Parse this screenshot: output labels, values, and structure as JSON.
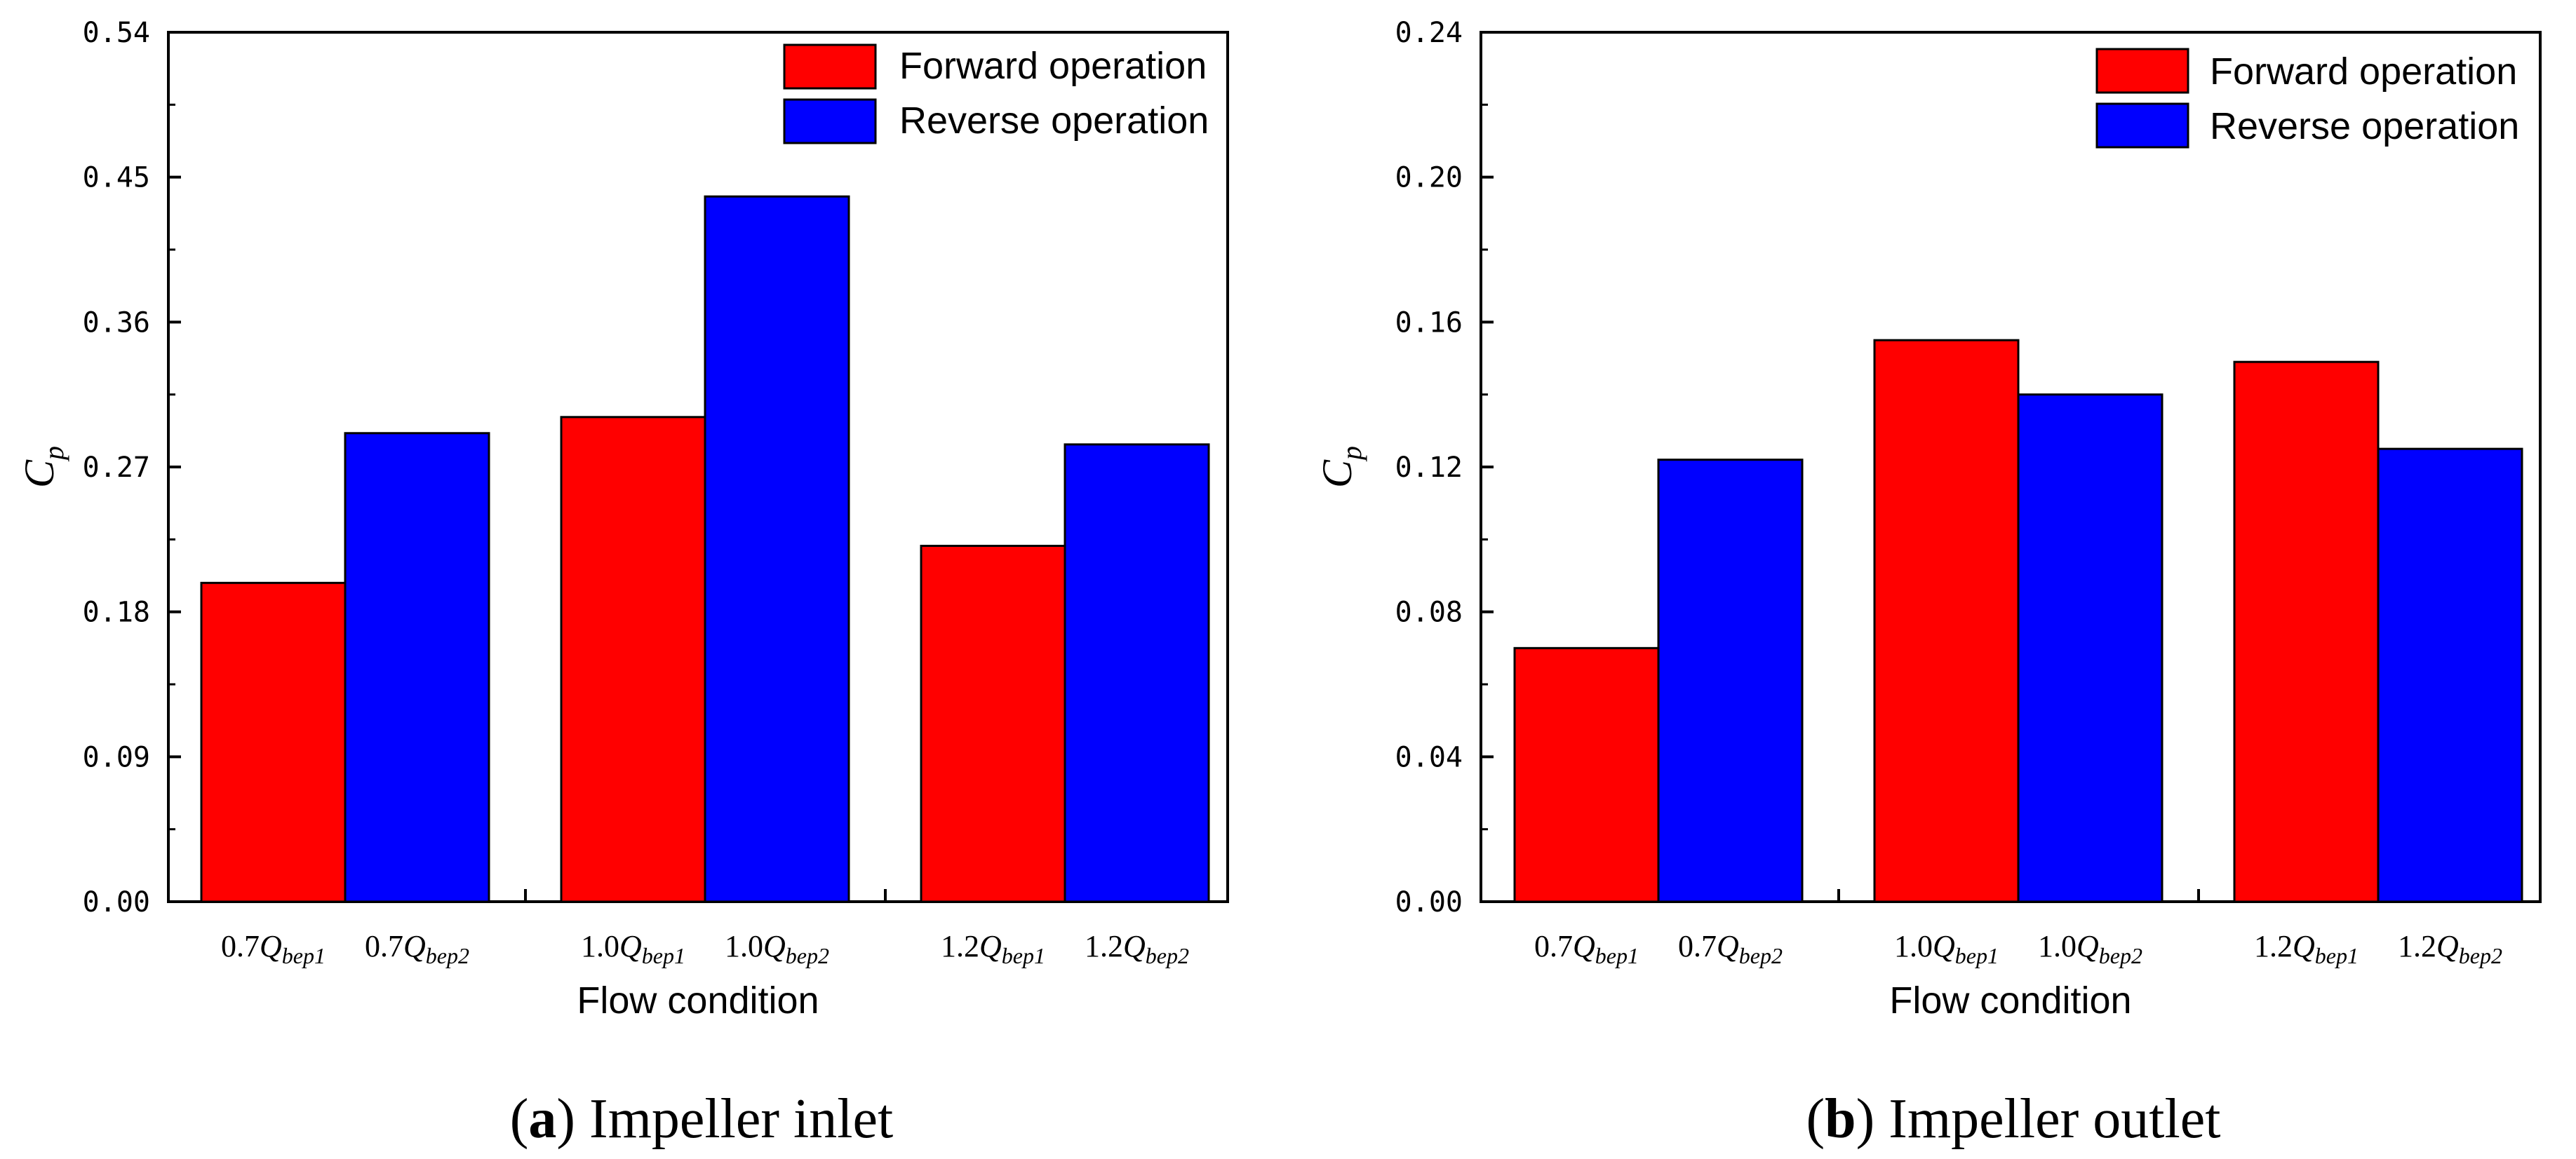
{
  "colors": {
    "forward": "#ff0000",
    "reverse": "#0000ff",
    "axis": "#000000"
  },
  "chart_data": [
    {
      "type": "bar",
      "title": "",
      "caption": {
        "letter": "a",
        "text": "Impeller inlet"
      },
      "xlabel": "Flow condition",
      "ylabel": {
        "main": "C",
        "sub": "p"
      },
      "ylim": [
        0,
        0.54
      ],
      "yticks": [
        "0.00",
        "0.09",
        "0.18",
        "0.27",
        "0.36",
        "0.45",
        "0.54"
      ],
      "categories": [
        {
          "prefix": "0.7",
          "q": "Q",
          "sub_fwd": "bep1",
          "sub_rev": "bep2"
        },
        {
          "prefix": "1.0",
          "q": "Q",
          "sub_fwd": "bep1",
          "sub_rev": "bep2"
        },
        {
          "prefix": "1.2",
          "q": "Q",
          "sub_fwd": "bep1",
          "sub_rev": "bep2"
        }
      ],
      "series": [
        {
          "name": "Forward operation",
          "values": [
            0.198,
            0.301,
            0.221
          ]
        },
        {
          "name": "Reverse operation",
          "values": [
            0.291,
            0.438,
            0.284
          ]
        }
      ],
      "legend_position": "top-right"
    },
    {
      "type": "bar",
      "title": "",
      "caption": {
        "letter": "b",
        "text": "Impeller outlet"
      },
      "xlabel": "Flow condition",
      "ylabel": {
        "main": "C",
        "sub": "p"
      },
      "ylim": [
        0,
        0.24
      ],
      "yticks": [
        "0.00",
        "0.04",
        "0.08",
        "0.12",
        "0.16",
        "0.20",
        "0.24"
      ],
      "categories": [
        {
          "prefix": "0.7",
          "q": "Q",
          "sub_fwd": "bep1",
          "sub_rev": "bep2"
        },
        {
          "prefix": "1.0",
          "q": "Q",
          "sub_fwd": "bep1",
          "sub_rev": "bep2"
        },
        {
          "prefix": "1.2",
          "q": "Q",
          "sub_fwd": "bep1",
          "sub_rev": "bep2"
        }
      ],
      "series": [
        {
          "name": "Forward operation",
          "values": [
            0.07,
            0.155,
            0.149
          ]
        },
        {
          "name": "Reverse operation",
          "values": [
            0.122,
            0.14,
            0.125
          ]
        }
      ],
      "legend_position": "top-right"
    }
  ]
}
